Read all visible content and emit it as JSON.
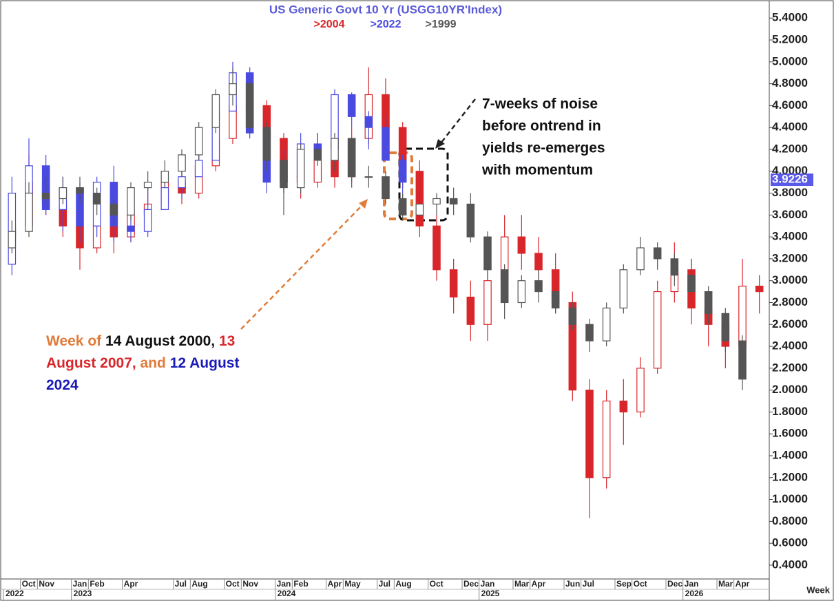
{
  "chart_data": {
    "type": "candlestick",
    "title": "US  Generic  Govt  10  Yr  (USGG10YR'Index)",
    "title_color": "#5a5ad8",
    "series": [
      {
        "name": ">2004",
        "color": "#d8262b",
        "x": [
          "2022-09",
          "2022-10",
          "2022-11",
          "2022-12",
          "2023-01",
          "2023-02",
          "2023-03",
          "2023-04",
          "2023-05",
          "2023-06",
          "2023-07",
          "2023-08",
          "2023-09",
          "2023-10",
          "2023-11",
          "2023-12",
          "2024-01",
          "2024-02",
          "2024-03",
          "2024-04",
          "2024-05",
          "2024-06",
          "2024-07",
          "2024-08",
          "2024-09",
          "2024-10",
          "2024-11",
          "2024-12",
          "2025-01",
          "2025-02",
          "2025-03",
          "2025-04",
          "2025-05",
          "2025-06",
          "2025-07",
          "2025-08",
          "2025-09",
          "2025-10",
          "2025-11",
          "2025-12",
          "2026-01",
          "2026-02",
          "2026-03",
          "2026-04",
          "2026-05"
        ],
        "open": [
          3.4,
          3.5,
          3.9,
          3.7,
          3.5,
          3.3,
          3.5,
          3.4,
          3.6,
          3.7,
          3.9,
          3.8,
          4.05,
          4.3,
          4.6,
          4.6,
          4.3,
          3.95,
          3.9,
          4.1,
          3.95,
          4.3,
          4.7,
          4.4,
          4.0,
          3.5,
          3.1,
          2.85,
          2.6,
          3.0,
          3.4,
          3.25,
          3.1,
          2.8,
          2.0,
          1.2,
          1.9,
          1.8,
          2.2,
          2.9,
          3.1,
          2.75,
          2.6,
          2.4,
          2.95
        ],
        "high": [
          3.6,
          4.15,
          4.0,
          3.75,
          3.6,
          3.65,
          3.55,
          3.7,
          3.8,
          4.0,
          4.0,
          4.15,
          4.4,
          4.7,
          4.8,
          4.65,
          4.35,
          4.1,
          4.15,
          4.2,
          4.4,
          4.95,
          4.85,
          4.45,
          4.1,
          3.6,
          3.2,
          3.0,
          3.1,
          3.6,
          3.6,
          3.4,
          3.25,
          2.9,
          2.1,
          2.0,
          2.1,
          2.3,
          3.0,
          3.35,
          3.2,
          2.9,
          2.7,
          3.2,
          3.05
        ],
        "low": [
          3.2,
          3.45,
          3.6,
          3.4,
          3.1,
          3.25,
          3.25,
          3.35,
          3.55,
          3.65,
          3.7,
          3.75,
          4.0,
          4.25,
          4.5,
          4.2,
          3.8,
          3.75,
          3.85,
          3.85,
          3.9,
          4.25,
          4.3,
          3.85,
          3.4,
          3.0,
          2.7,
          2.45,
          2.45,
          2.95,
          3.1,
          2.95,
          2.7,
          1.9,
          0.83,
          1.1,
          1.5,
          1.75,
          2.15,
          2.8,
          2.6,
          2.4,
          2.2,
          2.35,
          2.7
        ],
        "close": [
          3.5,
          3.9,
          3.7,
          3.5,
          3.3,
          3.5,
          3.4,
          3.6,
          3.7,
          3.9,
          3.8,
          4.05,
          4.3,
          4.6,
          4.6,
          4.3,
          3.95,
          3.9,
          4.1,
          3.95,
          4.3,
          4.7,
          4.4,
          4.0,
          3.5,
          3.1,
          2.85,
          2.6,
          3.0,
          3.4,
          3.25,
          3.1,
          2.8,
          2.0,
          1.2,
          1.9,
          1.8,
          2.2,
          2.9,
          3.1,
          2.75,
          2.6,
          2.4,
          2.95,
          2.9
        ]
      },
      {
        "name": ">2022",
        "color": "#4a4ae0",
        "x": [
          "2022-09",
          "2022-10",
          "2022-11",
          "2022-12",
          "2023-01",
          "2023-02",
          "2023-03",
          "2023-04",
          "2023-05",
          "2023-06",
          "2023-07",
          "2023-08",
          "2023-09",
          "2023-10",
          "2023-11",
          "2023-12",
          "2024-01",
          "2024-02",
          "2024-03",
          "2024-04",
          "2024-05",
          "2024-06",
          "2024-07",
          "2024-08"
        ],
        "open": [
          3.15,
          3.8,
          4.05,
          3.65,
          3.85,
          3.5,
          3.9,
          3.5,
          3.45,
          3.65,
          3.85,
          3.95,
          4.1,
          4.55,
          4.9,
          4.35,
          3.9,
          3.95,
          4.25,
          4.2,
          4.7,
          4.5,
          4.4,
          4.1
        ],
        "high": [
          3.95,
          4.3,
          4.15,
          3.95,
          3.9,
          3.95,
          4.05,
          3.6,
          3.85,
          3.9,
          4.05,
          4.35,
          4.6,
          5.0,
          4.95,
          4.4,
          4.2,
          4.35,
          4.35,
          4.75,
          4.72,
          4.55,
          4.5,
          4.15
        ],
        "low": [
          3.05,
          3.7,
          3.6,
          3.45,
          3.35,
          3.4,
          3.35,
          3.35,
          3.4,
          3.65,
          3.75,
          3.95,
          4.1,
          4.55,
          4.3,
          3.8,
          3.8,
          3.95,
          4.1,
          4.2,
          4.4,
          4.2,
          4.1,
          3.75
        ],
        "close": [
          3.8,
          4.05,
          3.65,
          3.85,
          3.5,
          3.9,
          3.5,
          3.45,
          3.65,
          3.85,
          3.95,
          4.1,
          4.55,
          4.9,
          4.35,
          3.9,
          3.95,
          4.25,
          4.2,
          4.7,
          4.5,
          4.4,
          4.1,
          3.9
        ]
      },
      {
        "name": ">1999",
        "color": "#555555",
        "x": [
          "2022-09",
          "2022-10",
          "2022-11",
          "2022-12",
          "2023-01",
          "2023-02",
          "2023-03",
          "2023-04",
          "2023-05",
          "2023-06",
          "2023-07",
          "2023-08",
          "2023-09",
          "2023-10",
          "2023-11",
          "2023-12",
          "2024-01",
          "2024-02",
          "2024-03",
          "2024-04",
          "2024-05",
          "2024-06",
          "2024-07",
          "2024-08",
          "2024-09",
          "2024-10",
          "2024-11",
          "2024-12",
          "2025-01",
          "2025-02",
          "2025-03",
          "2025-04",
          "2025-05",
          "2025-06",
          "2025-07",
          "2025-08",
          "2025-09",
          "2025-10",
          "2025-11",
          "2025-12",
          "2026-01",
          "2026-02",
          "2026-03",
          "2026-04"
        ],
        "open": [
          3.3,
          3.45,
          3.8,
          3.75,
          3.85,
          3.8,
          3.7,
          3.6,
          3.85,
          3.9,
          4.0,
          4.15,
          4.4,
          4.7,
          4.8,
          4.4,
          4.1,
          3.85,
          4.2,
          4.1,
          4.3,
          3.95,
          3.95,
          3.75,
          3.6,
          3.7,
          3.75,
          3.7,
          3.4,
          3.1,
          2.8,
          3.0,
          2.9,
          2.75,
          2.6,
          2.45,
          2.75,
          3.1,
          3.3,
          3.2,
          3.05,
          2.9,
          2.7,
          2.45
        ],
        "high": [
          3.55,
          3.9,
          3.95,
          3.95,
          3.95,
          3.85,
          3.75,
          3.9,
          4.0,
          4.1,
          4.2,
          4.45,
          4.75,
          4.95,
          4.85,
          4.45,
          4.15,
          4.25,
          4.35,
          4.35,
          4.3,
          4.05,
          4.0,
          3.8,
          3.8,
          3.8,
          3.85,
          3.8,
          3.45,
          3.15,
          3.05,
          3.1,
          2.95,
          2.8,
          2.65,
          2.8,
          3.15,
          3.4,
          3.35,
          3.25,
          3.2,
          2.95,
          2.75,
          2.5
        ],
        "low": [
          3.25,
          3.4,
          3.7,
          3.7,
          3.7,
          3.6,
          3.5,
          3.55,
          3.8,
          3.85,
          3.95,
          4.1,
          4.35,
          4.6,
          4.35,
          4.0,
          3.6,
          3.8,
          4.05,
          4.0,
          3.85,
          3.85,
          3.7,
          3.55,
          3.55,
          3.6,
          3.6,
          3.35,
          3.0,
          2.65,
          2.75,
          2.8,
          2.7,
          2.55,
          2.35,
          2.4,
          2.7,
          3.05,
          3.1,
          2.95,
          2.85,
          2.6,
          2.35,
          2.0
        ],
        "close": [
          3.45,
          3.8,
          3.75,
          3.85,
          3.8,
          3.7,
          3.6,
          3.85,
          3.9,
          4.0,
          4.15,
          4.4,
          4.7,
          4.8,
          4.4,
          4.1,
          3.85,
          4.2,
          4.1,
          4.3,
          3.95,
          3.95,
          3.75,
          3.6,
          3.7,
          3.75,
          3.7,
          3.4,
          3.1,
          2.8,
          3.0,
          2.9,
          2.75,
          2.6,
          2.45,
          2.75,
          3.1,
          3.3,
          3.2,
          3.05,
          2.9,
          2.7,
          2.45,
          2.1
        ]
      }
    ],
    "xlim": [
      "2022-09",
      "2026-06"
    ],
    "xticks": [
      {
        "value": "2022-10",
        "label": "Oct"
      },
      {
        "value": "2022-11",
        "label": "Nov"
      },
      {
        "value": "2023-01",
        "label": "Jan"
      },
      {
        "value": "2023-02",
        "label": "Feb"
      },
      {
        "value": "2023-04",
        "label": "Apr"
      },
      {
        "value": "2023-07",
        "label": "Jul"
      },
      {
        "value": "2023-08",
        "label": "Aug"
      },
      {
        "value": "2023-10",
        "label": "Oct"
      },
      {
        "value": "2023-11",
        "label": "Nov"
      },
      {
        "value": "2024-01",
        "label": "Jan"
      },
      {
        "value": "2024-02",
        "label": "Feb"
      },
      {
        "value": "2024-04",
        "label": "Apr"
      },
      {
        "value": "2024-05",
        "label": "May"
      },
      {
        "value": "2024-07",
        "label": "Jul"
      },
      {
        "value": "2024-08",
        "label": "Aug"
      },
      {
        "value": "2024-10",
        "label": "Oct"
      },
      {
        "value": "2024-12",
        "label": "Dec"
      },
      {
        "value": "2025-01",
        "label": "Jan"
      },
      {
        "value": "2025-03",
        "label": "Mar"
      },
      {
        "value": "2025-04",
        "label": "Apr"
      },
      {
        "value": "2025-06",
        "label": "Jun"
      },
      {
        "value": "2025-07",
        "label": "Jul"
      },
      {
        "value": "2025-09",
        "label": "Sep"
      },
      {
        "value": "2025-10",
        "label": "Oct"
      },
      {
        "value": "2025-12",
        "label": "Dec"
      },
      {
        "value": "2026-01",
        "label": "Jan"
      },
      {
        "value": "2026-03",
        "label": "Mar"
      },
      {
        "value": "2026-04",
        "label": "Apr"
      }
    ],
    "xticks_years": [
      {
        "value": "2022-09",
        "label": "2022"
      },
      {
        "value": "2023-01",
        "label": "2023"
      },
      {
        "value": "2024-01",
        "label": "2024"
      },
      {
        "value": "2025-01",
        "label": "2025"
      },
      {
        "value": "2026-01",
        "label": "2026"
      }
    ],
    "xlabel": "Week",
    "ylim": [
      0.28,
      5.54
    ],
    "yticks": [
      {
        "value": 0.4,
        "label": "0.4000"
      },
      {
        "value": 0.6,
        "label": "0.6000"
      },
      {
        "value": 0.8,
        "label": "0.8000"
      },
      {
        "value": 1.0,
        "label": "1.0000"
      },
      {
        "value": 1.2,
        "label": "1.2000"
      },
      {
        "value": 1.4,
        "label": "1.4000"
      },
      {
        "value": 1.6,
        "label": "1.6000"
      },
      {
        "value": 1.8,
        "label": "1.8000"
      },
      {
        "value": 2.0,
        "label": "2.0000"
      },
      {
        "value": 2.2,
        "label": "2.2000"
      },
      {
        "value": 2.4,
        "label": "2.4000"
      },
      {
        "value": 2.6,
        "label": "2.6000"
      },
      {
        "value": 2.8,
        "label": "2.8000"
      },
      {
        "value": 3.0,
        "label": "3.0000"
      },
      {
        "value": 3.2,
        "label": "3.2000"
      },
      {
        "value": 3.4,
        "label": "3.4000"
      },
      {
        "value": 3.6,
        "label": "3.6000"
      },
      {
        "value": 3.8,
        "label": "3.8000"
      },
      {
        "value": 4.0,
        "label": "4.0000"
      },
      {
        "value": 4.2,
        "label": "4.2000"
      },
      {
        "value": 4.4,
        "label": "4.4000"
      },
      {
        "value": 4.6,
        "label": "4.6000"
      },
      {
        "value": 4.8,
        "label": "4.8000"
      },
      {
        "value": 5.0,
        "label": "5.0000"
      },
      {
        "value": 5.2,
        "label": "5.2000"
      },
      {
        "value": 5.4,
        "label": "5.4000"
      }
    ],
    "last_value": 3.9226,
    "last_value_color": "#5a5ae8",
    "note_lines": [
      "7-weeks of noise",
      "before ontrend in",
      "yields re-emerges",
      "with momentum"
    ],
    "note2_parts": [
      {
        "text": "Week of ",
        "color": "#e07b39"
      },
      {
        "text": "14 August 2000, ",
        "color": "#111111"
      },
      {
        "text": "13 August 2007, ",
        "color": "#d8262b"
      },
      {
        "text": "and ",
        "color": "#e07b39"
      },
      {
        "text": "12 August 2024",
        "color": "#1a1ab8"
      }
    ]
  }
}
